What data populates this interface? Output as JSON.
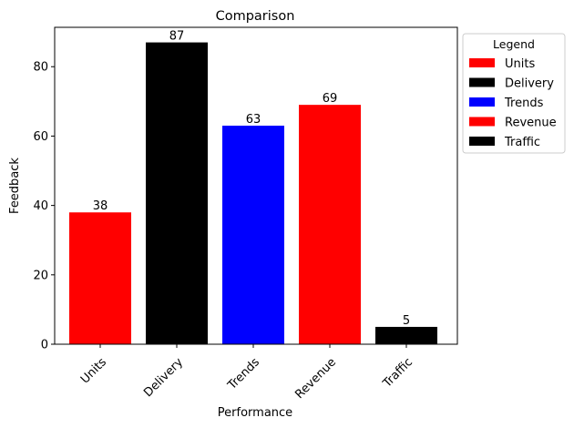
{
  "chart_data": {
    "type": "bar",
    "title": "Comparison",
    "xlabel": "Performance",
    "ylabel": "Feedback",
    "categories": [
      "Units",
      "Delivery",
      "Trends",
      "Revenue",
      "Traffic"
    ],
    "values": [
      38,
      87,
      63,
      69,
      5
    ],
    "colors": [
      "#ff0000",
      "#000000",
      "#0000ff",
      "#ff0000",
      "#000000"
    ],
    "ylim": [
      0,
      91.35
    ],
    "yticks": [
      0,
      20,
      40,
      60,
      80
    ],
    "grid": false,
    "legend": {
      "title": "Legend",
      "placement": "outside-right-top",
      "entries": [
        {
          "label": "Units",
          "color": "#ff0000"
        },
        {
          "label": "Delivery",
          "color": "#000000"
        },
        {
          "label": "Trends",
          "color": "#0000ff"
        },
        {
          "label": "Revenue",
          "color": "#ff0000"
        },
        {
          "label": "Traffic",
          "color": "#000000"
        }
      ]
    }
  }
}
